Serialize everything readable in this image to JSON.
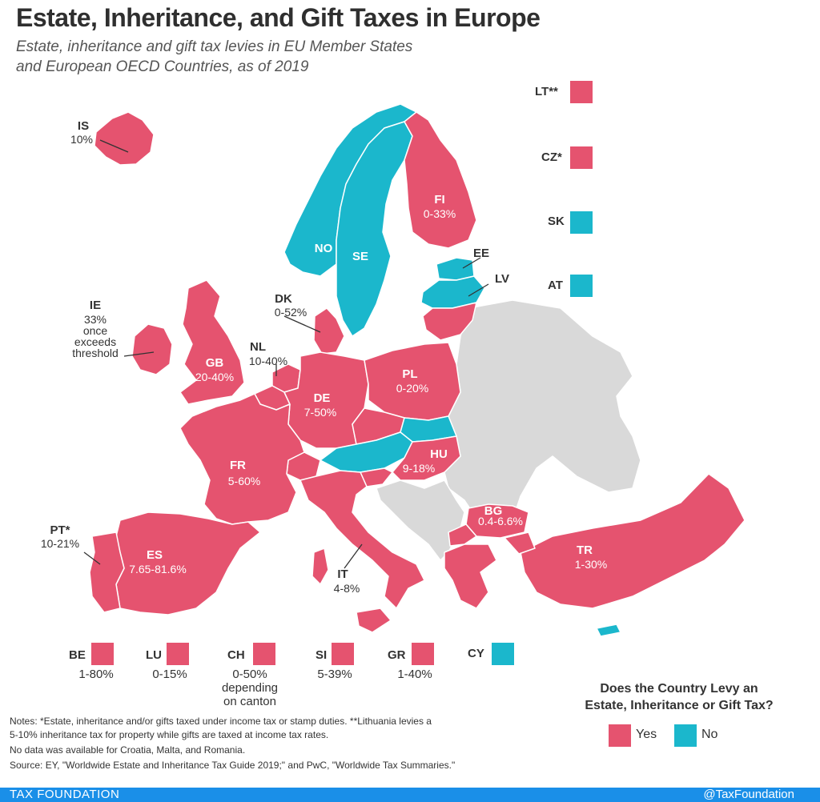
{
  "header": {
    "title": "Estate, Inheritance, and Gift Taxes in Europe",
    "subtitle_line1": "Estate, inheritance and gift tax levies in EU Member States",
    "subtitle_line2": "and European OECD Countries, as of 2019"
  },
  "colors": {
    "yes": "#e5536f",
    "no": "#1bb7cc",
    "no_data": "#d9d9d9"
  },
  "countries": {
    "IS": {
      "code": "IS",
      "value": "10%",
      "levy": "yes"
    },
    "NO": {
      "code": "NO",
      "levy": "no"
    },
    "SE": {
      "code": "SE",
      "levy": "no"
    },
    "FI": {
      "code": "FI",
      "value": "0-33%",
      "levy": "yes"
    },
    "EE": {
      "code": "EE",
      "levy": "no"
    },
    "LV": {
      "code": "LV",
      "levy": "no"
    },
    "DK": {
      "code": "DK",
      "value": "0-52%",
      "levy": "yes"
    },
    "IE": {
      "code": "IE",
      "value_lines": [
        "33%",
        "once",
        "exceeds",
        "threshold"
      ],
      "levy": "yes"
    },
    "GB": {
      "code": "GB",
      "value": "20-40%",
      "levy": "yes"
    },
    "NL": {
      "code": "NL",
      "value": "10-40%",
      "levy": "yes"
    },
    "DE": {
      "code": "DE",
      "value": "7-50%",
      "levy": "yes"
    },
    "PL": {
      "code": "PL",
      "value": "0-20%",
      "levy": "yes"
    },
    "HU": {
      "code": "HU",
      "value": "9-18%",
      "levy": "yes"
    },
    "FR": {
      "code": "FR",
      "value": "5-60%",
      "levy": "yes"
    },
    "BG": {
      "code": "BG",
      "value": "0.4-6.6%",
      "levy": "yes"
    },
    "PT": {
      "code": "PT*",
      "value": "10-21%",
      "levy": "yes"
    },
    "ES": {
      "code": "ES",
      "value": "7.65-81.6%",
      "levy": "yes"
    },
    "IT": {
      "code": "IT",
      "value": "4-8%",
      "levy": "yes"
    },
    "TR": {
      "code": "TR",
      "value": "1-30%",
      "levy": "yes"
    }
  },
  "side_squares": [
    {
      "code": "LT**",
      "levy": "yes"
    },
    {
      "code": "CZ*",
      "levy": "yes"
    },
    {
      "code": "SK",
      "levy": "no"
    },
    {
      "code": "AT",
      "levy": "no"
    }
  ],
  "bottom_squares": [
    {
      "code": "BE",
      "levy": "yes",
      "value_lines": [
        "1-80%"
      ]
    },
    {
      "code": "LU",
      "levy": "yes",
      "value_lines": [
        "0-15%"
      ]
    },
    {
      "code": "CH",
      "levy": "yes",
      "value_lines": [
        "0-50%",
        "depending",
        "on canton"
      ]
    },
    {
      "code": "SI",
      "levy": "yes",
      "value_lines": [
        "5-39%"
      ]
    },
    {
      "code": "GR",
      "levy": "yes",
      "value_lines": [
        "1-40%"
      ]
    },
    {
      "code": "CY",
      "levy": "no",
      "value_lines": []
    }
  ],
  "legend": {
    "title_line1": "Does the Country Levy an",
    "title_line2": "Estate, Inheritance or Gift Tax?",
    "yes_label": "Yes",
    "no_label": "No"
  },
  "notes": {
    "line1": "Notes: *Estate, inheritance and/or gifts taxed under income tax or stamp duties. **Lithuania levies a",
    "line2": "5-10% inheritance tax for property while gifts are taxed at income tax rates.",
    "line3": "No data was available for Croatia, Malta, and Romania.",
    "line4": "Source: EY, \"Worldwide Estate and Inheritance Tax Guide 2019;\" and PwC, \"Worldwide Tax Summaries.\""
  },
  "footer": {
    "brand": "TAX FOUNDATION",
    "handle": "@TaxFoundation"
  }
}
